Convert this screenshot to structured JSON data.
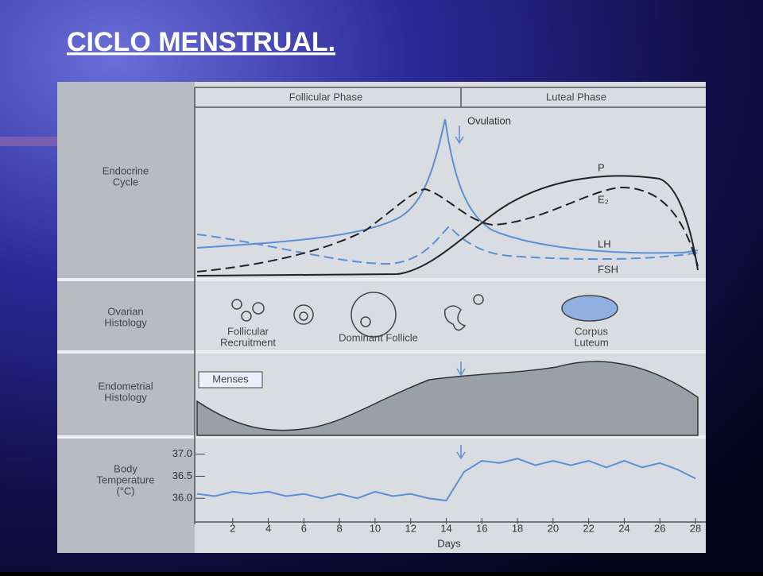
{
  "title": "CICLO MENSTRUAL.",
  "figure": {
    "phases": [
      "Follicular Phase",
      "Luteal Phase"
    ],
    "row_labels": [
      [
        "Endocrine",
        "Cycle"
      ],
      [
        "Ovarian",
        "Histology"
      ],
      [
        "Endometrial",
        "Histology"
      ],
      [
        "Body",
        "Temperature",
        "(°C)"
      ]
    ],
    "annotations": {
      "ovulation": "Ovulation",
      "menses": "Menses"
    },
    "curve_labels": [
      "P",
      "E₂",
      "LH",
      "FSH"
    ],
    "ovarian_labels": [
      [
        "Follicular",
        "Recruitment"
      ],
      [
        "Dominant Follicle"
      ],
      [
        "Corpus",
        "Luteum"
      ]
    ]
  },
  "chart_data": {
    "type": "line",
    "x_label": "Days",
    "color": "#5b8fd6",
    "x": [
      0,
      1,
      2,
      3,
      4,
      5,
      6,
      7,
      8,
      9,
      10,
      11,
      12,
      13,
      14,
      15,
      16,
      17,
      18,
      19,
      20,
      21,
      22,
      23,
      24,
      25,
      26,
      27,
      28
    ],
    "values": [
      36.1,
      36.05,
      36.15,
      36.1,
      36.15,
      36.05,
      36.1,
      36.0,
      36.1,
      36.0,
      36.15,
      36.05,
      36.1,
      36.0,
      35.95,
      36.6,
      36.85,
      36.8,
      36.9,
      36.75,
      36.85,
      36.75,
      36.85,
      36.7,
      36.85,
      36.7,
      36.8,
      36.65,
      36.45
    ],
    "xlim": [
      0,
      28
    ],
    "xticks": [
      2,
      4,
      6,
      8,
      10,
      12,
      14,
      16,
      18,
      20,
      22,
      24,
      26,
      28
    ],
    "ylim": [
      35.5,
      37.3
    ],
    "yticks": [
      {
        "value": 36,
        "label": "36.0"
      },
      36.5,
      {
        "value": 37,
        "label": "37.0"
      }
    ]
  }
}
